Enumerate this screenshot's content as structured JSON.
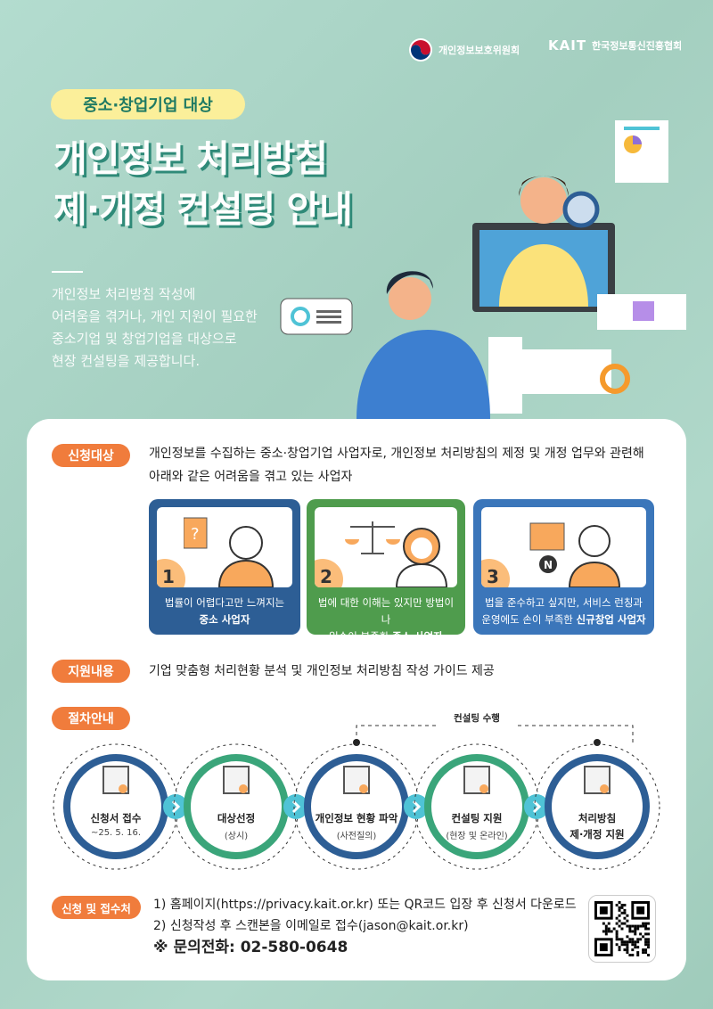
{
  "logos": {
    "pipc": "개인정보보호위원회",
    "kait_mark": "KAIT",
    "kait": "한국정보통신진흥협회"
  },
  "header": {
    "tag": "중소·창업기업 대상",
    "title_line1": "개인정보 처리방침",
    "title_line2": "제·개정 컨설팅 안내",
    "description": [
      "개인정보 처리방침 작성에",
      "어려움을 겪거나, 개인 지원이 필요한",
      "중소기업 및 창업기업을 대상으로",
      "현장 컨설팅을 제공합니다."
    ]
  },
  "target": {
    "label": "신청대상",
    "text_line1": "개인정보를 수집하는 중소·창업기업 사업자로, 개인정보 처리방침의 제정 및 개정 업무와 관련해",
    "text_line2": "아래와 같은 어려움을 겪고 있는 사업자",
    "cases": [
      {
        "num": "1",
        "line1": "법률이 어렵다고만 느껴지는",
        "pre": "",
        "bold": "중소 사업자",
        "color": "#2d5e95"
      },
      {
        "num": "2",
        "line1": "법에 대한 이해는 있지만 방법이나",
        "pre": "일손이 부족한 ",
        "bold": "중소 사업자",
        "color": "#4f9c4d"
      },
      {
        "num": "3",
        "line1": "법을 준수하고 싶지만, 서비스 런칭과",
        "pre": "운영에도 손이 부족한 ",
        "bold": "신규창업 사업자",
        "color": "#3b76ba"
      }
    ]
  },
  "support": {
    "label": "지원내용",
    "text": "기업 맞춤형 처리현황 분석 및 개인정보 처리방침 작성 가이드 제공"
  },
  "procedure": {
    "label": "절차안내",
    "consulting_bracket": "컨설팅 수행",
    "steps": [
      {
        "title": "신청서 접수",
        "sub": "~25. 5. 16.",
        "icon": "application-pen-icon"
      },
      {
        "title": "대상선정",
        "sub": "(상시)",
        "icon": "profile-search-icon"
      },
      {
        "title": "개인정보 현황 파악",
        "sub": "(사전질의)",
        "icon": "checklist-icon"
      },
      {
        "title": "컨설팅 지원",
        "sub": "(현장 및 온라인)",
        "icon": "strategy-board-icon"
      },
      {
        "title": "처리방침",
        "title2": "제·개정 지원",
        "sub": "",
        "icon": "open-book-icon"
      }
    ]
  },
  "apply": {
    "label": "신청 및 접수처",
    "line1": "1) 홈페이지(https://privacy.kait.or.kr) 또는 QR코드 입장 후  신청서 다운로드",
    "line2": "2) 신청작성 후 스캔본을 이메일로 접수(jason@kait.or.kr)",
    "phone": "※ 문의전화: 02-580-0648"
  },
  "colors": {
    "background": "#a9d3c4",
    "accent": "#f07c3c",
    "tag": "#fbef9a",
    "blue": "#2d5e95",
    "green": "#3aa57a",
    "arrow": "#4fc3d6"
  }
}
